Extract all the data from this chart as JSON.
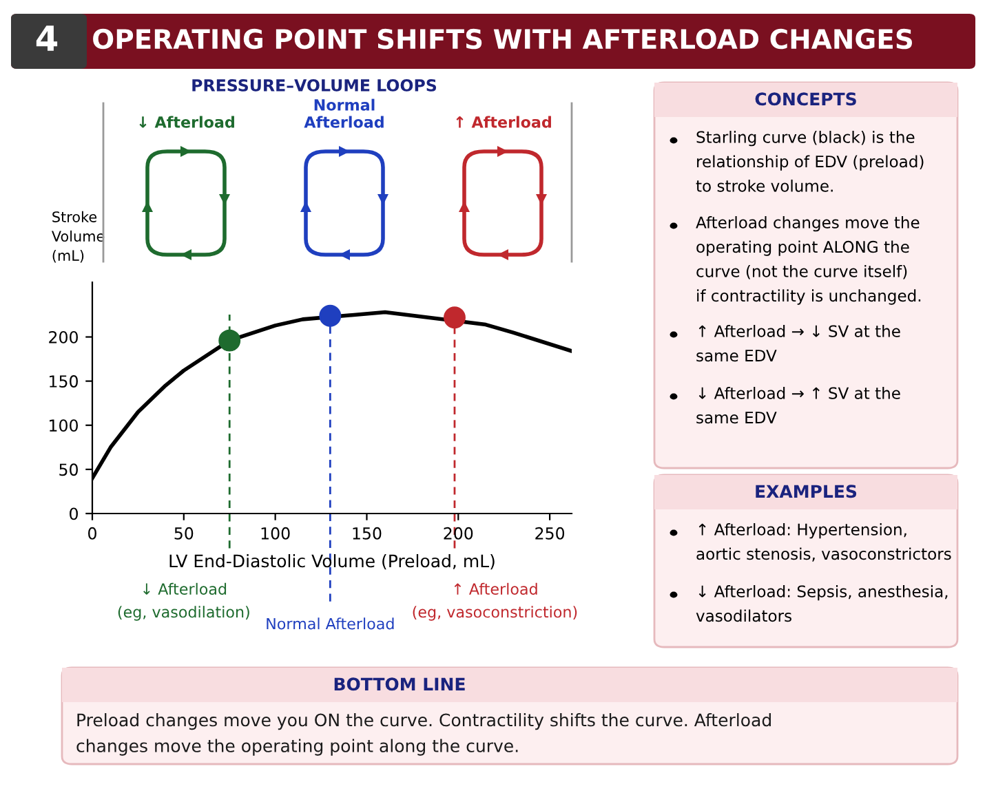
{
  "chart_data": [
    {
      "type": "other",
      "title": "OPERATING POINT SHIFTS WITH AFTERLOAD CHANGES",
      "annotations": [
        "4"
      ],
      "color": "#7a1020"
    },
    {
      "type": "line",
      "subtitle": "PRESSURE–VOLUME LOOPS",
      "xlabel": "LV End-Diastolic Volume (Preload, mL)",
      "ylabel": "Stroke\nVolume\n(mL)",
      "xlim": [
        0,
        262
      ],
      "ylim": [
        0,
        262
      ],
      "xticks": [
        0,
        50,
        100,
        150,
        200,
        250
      ],
      "yticks": [
        0,
        50,
        100,
        150,
        200
      ],
      "grid": false,
      "legend": false,
      "series": [
        {
          "type": "line",
          "color": "#000000",
          "line_style": "solid",
          "marker": "none",
          "x": [
            0,
            10,
            25,
            40,
            50,
            75,
            100,
            115,
            160,
            215,
            230,
            262
          ],
          "values": [
            40,
            75,
            115,
            145,
            162,
            196,
            213,
            220,
            228,
            214,
            205,
            184
          ]
        },
        {
          "type": "scatter",
          "marker": "circle",
          "x": [
            75,
            130,
            198
          ],
          "values": [
            196,
            224,
            222
          ],
          "colors": [
            "#1e6b2e",
            "#1f3fbf",
            "#c0282d"
          ]
        }
      ],
      "ref_lines": [
        {
          "axis": "x",
          "value": 75,
          "label": "↓ Afterload\n(eg, vasodilation)",
          "color": "#1e6b2e",
          "line_style": "dashed"
        },
        {
          "axis": "x",
          "value": 130,
          "label": "Normal Afterload",
          "color": "#1f3fbf",
          "line_style": "dashed"
        },
        {
          "axis": "x",
          "value": 198,
          "label": "↑ Afterload\n(eg, vasoconstriction)",
          "color": "#c0282d",
          "line_style": "dashed"
        }
      ],
      "annotations": [
        "↓ Afterload",
        "Normal\nAfterload",
        "↑ Afterload"
      ]
    },
    {
      "type": "other",
      "title": "CONCEPTS",
      "annotations": [
        "Starling curve (black) is the\nrelationship of EDV (preload)\nto stroke volume.",
        "Afterload changes move the\noperating point ALONG the\ncurve (not the curve itself)\nif contractility is unchanged.",
        "↑ Afterload → ↓ SV at the\nsame EDV",
        "↓ Afterload → ↑ SV at the\nsame EDV"
      ]
    },
    {
      "type": "other",
      "title": "EXAMPLES",
      "annotations": [
        "↑ Afterload: Hypertension,\naortic stenosis, vasoconstrictors",
        "↓ Afterload: Sepsis, anesthesia,\nvasodilators"
      ]
    },
    {
      "type": "other",
      "title": "BOTTOM LINE",
      "annotations": [
        "Preload changes move you ON the curve. Contractility shifts the curve. Afterload\nchanges move the operating point along the curve."
      ]
    }
  ]
}
